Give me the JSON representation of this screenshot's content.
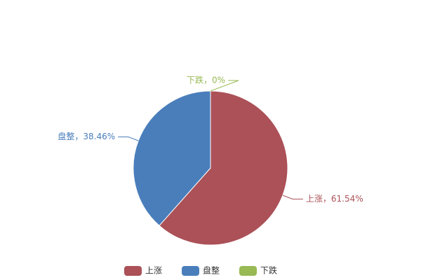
{
  "chart_data": {
    "type": "pie",
    "categories": [
      "上涨",
      "盘整",
      "下跌"
    ],
    "values": [
      61.54,
      38.46,
      0
    ],
    "value_labels": [
      "上涨，61.54%",
      "盘整，38.46%",
      "下跌，0%"
    ],
    "colors": [
      "#ab5157",
      "#4a7ebb",
      "#98b954"
    ],
    "legend": "bottom"
  }
}
